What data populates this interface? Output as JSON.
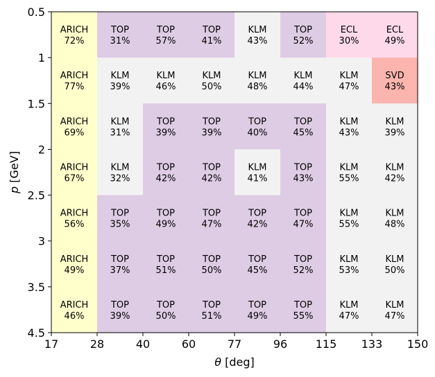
{
  "chart_data": {
    "type": "heatmap",
    "xlabel_symbol": "θ",
    "xlabel_unit": "[deg]",
    "ylabel_symbol": "p",
    "ylabel_unit": "[GeV]",
    "x_ticks": [
      "17",
      "28",
      "40",
      "60",
      "77",
      "96",
      "115",
      "133",
      "150"
    ],
    "y_ticks": [
      "0.5",
      "1",
      "1.5",
      "2",
      "2.5",
      "3",
      "3.5",
      "4.5"
    ],
    "detector_colors": {
      "ARICH": "#ffffcc",
      "TOP": "#decbe4",
      "KLM": "#f2f2f2",
      "ECL": "#fdd9e9",
      "SVD": "#fbb4ae"
    },
    "rows": [
      {
        "p_range": [
          "0.5",
          "1"
        ],
        "cells": [
          [
            "ARICH",
            "72%"
          ],
          [
            "TOP",
            "31%"
          ],
          [
            "TOP",
            "57%"
          ],
          [
            "TOP",
            "41%"
          ],
          [
            "KLM",
            "43%"
          ],
          [
            "TOP",
            "52%"
          ],
          [
            "ECL",
            "30%"
          ],
          [
            "ECL",
            "49%"
          ]
        ]
      },
      {
        "p_range": [
          "1",
          "1.5"
        ],
        "cells": [
          [
            "ARICH",
            "77%"
          ],
          [
            "KLM",
            "39%"
          ],
          [
            "KLM",
            "46%"
          ],
          [
            "KLM",
            "50%"
          ],
          [
            "KLM",
            "48%"
          ],
          [
            "KLM",
            "44%"
          ],
          [
            "KLM",
            "47%"
          ],
          [
            "SVD",
            "43%"
          ]
        ]
      },
      {
        "p_range": [
          "1.5",
          "2"
        ],
        "cells": [
          [
            "ARICH",
            "69%"
          ],
          [
            "KLM",
            "31%"
          ],
          [
            "TOP",
            "39%"
          ],
          [
            "TOP",
            "39%"
          ],
          [
            "TOP",
            "40%"
          ],
          [
            "TOP",
            "45%"
          ],
          [
            "KLM",
            "43%"
          ],
          [
            "KLM",
            "39%"
          ]
        ]
      },
      {
        "p_range": [
          "2",
          "2.5"
        ],
        "cells": [
          [
            "ARICH",
            "67%"
          ],
          [
            "KLM",
            "32%"
          ],
          [
            "TOP",
            "42%"
          ],
          [
            "TOP",
            "42%"
          ],
          [
            "KLM",
            "41%"
          ],
          [
            "TOP",
            "43%"
          ],
          [
            "KLM",
            "55%"
          ],
          [
            "KLM",
            "42%"
          ]
        ]
      },
      {
        "p_range": [
          "2.5",
          "3"
        ],
        "cells": [
          [
            "ARICH",
            "56%"
          ],
          [
            "TOP",
            "35%"
          ],
          [
            "TOP",
            "49%"
          ],
          [
            "TOP",
            "47%"
          ],
          [
            "TOP",
            "42%"
          ],
          [
            "TOP",
            "47%"
          ],
          [
            "KLM",
            "55%"
          ],
          [
            "KLM",
            "48%"
          ]
        ]
      },
      {
        "p_range": [
          "3",
          "3.5"
        ],
        "cells": [
          [
            "ARICH",
            "49%"
          ],
          [
            "TOP",
            "37%"
          ],
          [
            "TOP",
            "51%"
          ],
          [
            "TOP",
            "50%"
          ],
          [
            "TOP",
            "45%"
          ],
          [
            "TOP",
            "52%"
          ],
          [
            "KLM",
            "53%"
          ],
          [
            "KLM",
            "50%"
          ]
        ]
      },
      {
        "p_range": [
          "3.5",
          "4.5"
        ],
        "cells": [
          [
            "ARICH",
            "46%"
          ],
          [
            "TOP",
            "39%"
          ],
          [
            "TOP",
            "50%"
          ],
          [
            "TOP",
            "51%"
          ],
          [
            "TOP",
            "49%"
          ],
          [
            "TOP",
            "55%"
          ],
          [
            "KLM",
            "47%"
          ],
          [
            "KLM",
            "47%"
          ]
        ]
      }
    ]
  }
}
